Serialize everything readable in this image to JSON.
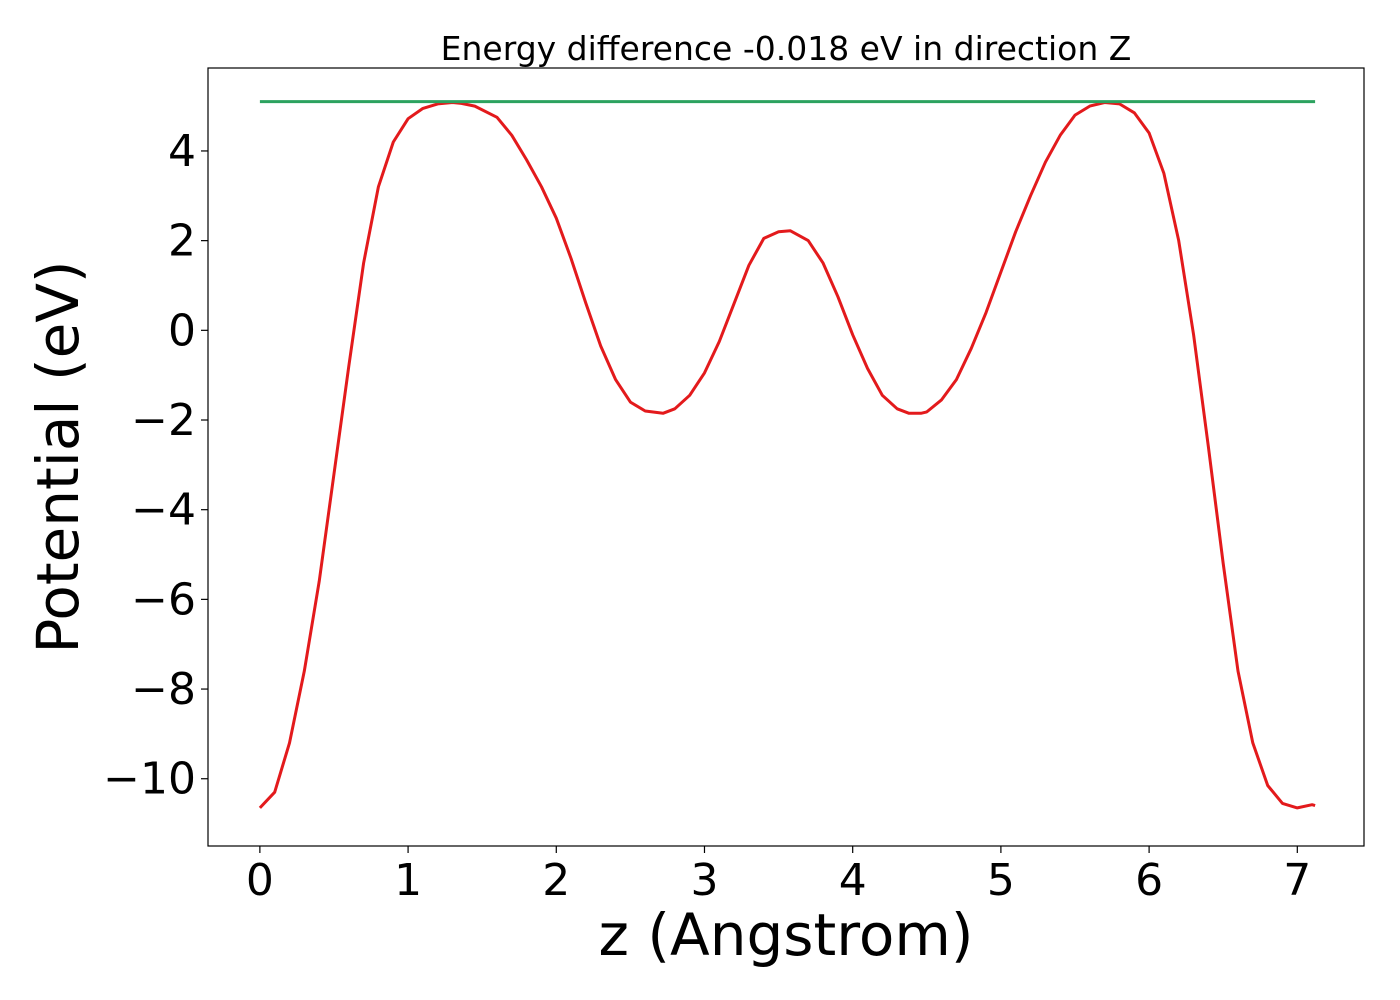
{
  "chart_data": {
    "type": "line",
    "title": "Energy difference -0.018 eV in direction Z",
    "xlabel": "z (Angstrom)",
    "ylabel": "Potential (eV)",
    "xlim": [
      -0.35,
      7.45
    ],
    "ylim": [
      -11.5,
      5.85
    ],
    "grid": false,
    "legend": "none",
    "xticks": [
      0,
      1,
      2,
      3,
      4,
      5,
      6,
      7
    ],
    "xtick_labels": [
      "0",
      "1",
      "2",
      "3",
      "4",
      "5",
      "6",
      "7"
    ],
    "yticks": [
      -10,
      -8,
      -6,
      -4,
      -2,
      0,
      2,
      4
    ],
    "ytick_labels": [
      "−10",
      "−8",
      "−6",
      "−4",
      "−2",
      "0",
      "2",
      "4"
    ],
    "colors": {
      "potential": "#e31a1c",
      "energy": "#2ca25f"
    },
    "series": [
      {
        "x": [
          0.0,
          0.1,
          0.2,
          0.3,
          0.4,
          0.5,
          0.6,
          0.7,
          0.8,
          0.9,
          1.0,
          1.1,
          1.2,
          1.3,
          1.36,
          1.45,
          1.6,
          1.7,
          1.8,
          1.9,
          2.0,
          2.1,
          2.2,
          2.3,
          2.4,
          2.5,
          2.6,
          2.72,
          2.8,
          2.9,
          3.0,
          3.1,
          3.2,
          3.3,
          3.4,
          3.5,
          3.58,
          3.7,
          3.8,
          3.9,
          4.0,
          4.1,
          4.2,
          4.3,
          4.38,
          4.46,
          4.5,
          4.6,
          4.7,
          4.8,
          4.9,
          5.0,
          5.1,
          5.2,
          5.3,
          5.4,
          5.5,
          5.6,
          5.7,
          5.8,
          5.9,
          6.0,
          6.1,
          6.2,
          6.3,
          6.4,
          6.5,
          6.6,
          6.7,
          6.8,
          6.9,
          7.0,
          7.1,
          7.12
        ],
        "values": [
          -10.65,
          -10.3,
          -9.2,
          -7.6,
          -5.6,
          -3.2,
          -0.8,
          1.5,
          3.2,
          4.2,
          4.72,
          4.95,
          5.05,
          5.08,
          5.06,
          5.0,
          4.75,
          4.35,
          3.8,
          3.2,
          2.5,
          1.6,
          0.6,
          -0.35,
          -1.1,
          -1.6,
          -1.8,
          -1.85,
          -1.75,
          -1.45,
          -0.95,
          -0.25,
          0.6,
          1.45,
          2.05,
          2.2,
          2.22,
          2.0,
          1.5,
          0.75,
          -0.1,
          -0.85,
          -1.45,
          -1.75,
          -1.85,
          -1.85,
          -1.82,
          -1.55,
          -1.1,
          -0.4,
          0.4,
          1.3,
          2.2,
          3.0,
          3.75,
          4.35,
          4.8,
          5.0,
          5.08,
          5.05,
          4.85,
          4.4,
          3.5,
          2.0,
          -0.1,
          -2.6,
          -5.2,
          -7.6,
          -9.2,
          -10.15,
          -10.55,
          -10.65,
          -10.58,
          -10.6
        ]
      },
      {
        "x": [
          0.0,
          7.12
        ],
        "values": [
          5.1,
          5.1
        ]
      }
    ]
  }
}
